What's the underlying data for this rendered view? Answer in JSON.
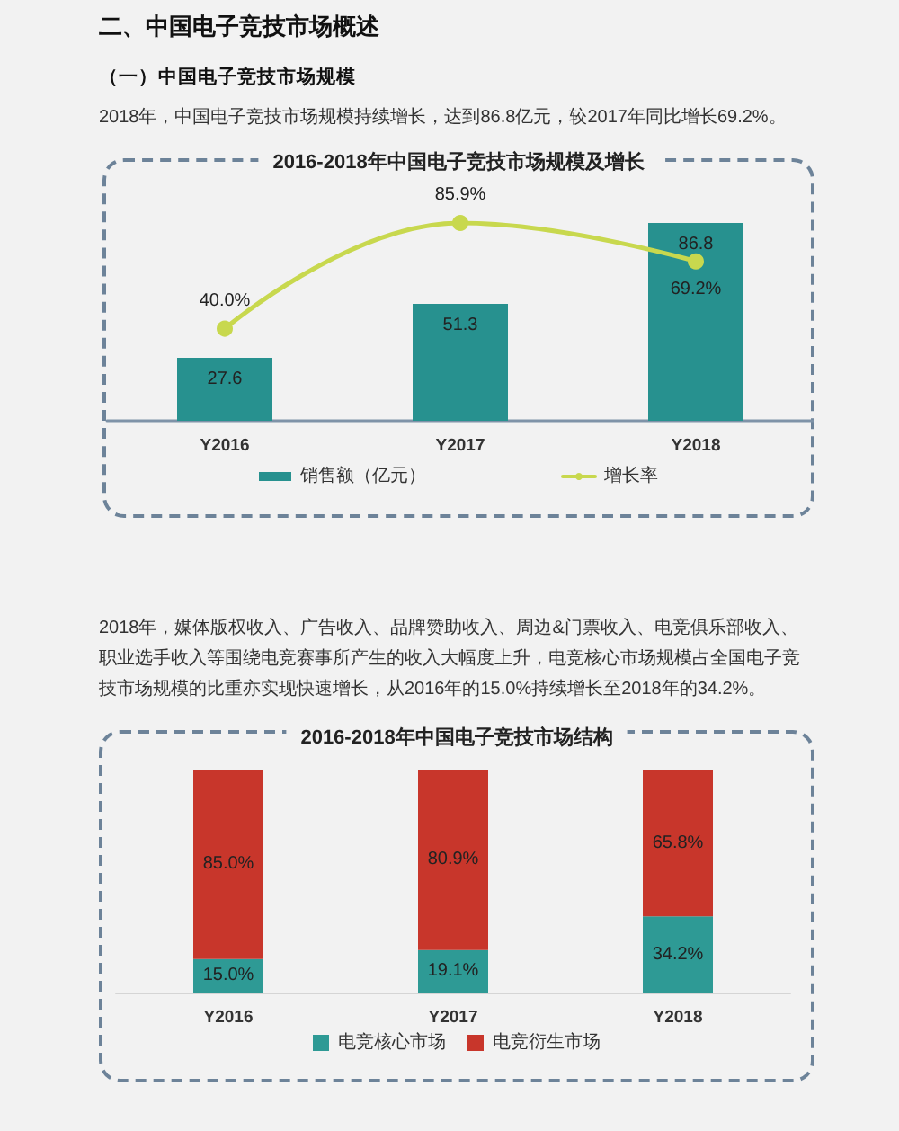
{
  "chart_data": [
    {
      "type": "bar",
      "title": "2016-2018年中国电子竞技市场规模及增长",
      "annotations": [
        "二、中国电子竞技市场概述",
        "（一）中国电子竞技市场规模",
        "2018年，中国电子竞技市场规模持续增长，达到86.8亿元，较2017年同比增长69.2%。"
      ],
      "categories": [
        "Y2016",
        "Y2017",
        "Y2018"
      ],
      "series": [
        {
          "name": "销售额（亿元）",
          "color": "#27918f",
          "values": [
            27.6,
            51.3,
            86.8
          ],
          "value_labels": [
            "27.6",
            "51.3",
            "86.8"
          ]
        },
        {
          "name": "增长率",
          "type": "line",
          "axis": "y2",
          "color": "#c8d84e",
          "values": [
            40.0,
            85.9,
            69.2
          ],
          "value_labels": [
            "40.0%",
            "85.9%",
            "69.2%"
          ]
        }
      ],
      "marker": "circle",
      "legend": "bottom",
      "tick_labels": "x"
    },
    {
      "type": "bar",
      "title": "2016-2018年中国电子竞技市场结构",
      "annotations": [
        "2018年，媒体版权收入、广告收入、品牌赞助收入、周边&门票收入、电竞俱乐部收入、职业选手收入等围绕电竞赛事所产生的收入大幅度上升，电竞核心市场规模占全国电子竞技市场规模的比重亦实现快速增长，从2016年的15.0%持续增长至2018年的34.2%。"
      ],
      "categories": [
        "Y2016",
        "Y2017",
        "Y2018"
      ],
      "stacked": true,
      "series": [
        {
          "name": "电竞核心市场",
          "color": "#2e9a95",
          "values": [
            15.0,
            19.1,
            34.2
          ],
          "value_labels": [
            "15.0%",
            "19.1%",
            "34.2%"
          ]
        },
        {
          "name": "电竞衍生市场",
          "color": "#c8362b",
          "values": [
            85.0,
            80.9,
            65.8
          ],
          "value_labels": [
            "85.0%",
            "80.9%",
            "65.8%"
          ]
        }
      ],
      "legend": "bottom",
      "tick_labels": "x"
    }
  ]
}
